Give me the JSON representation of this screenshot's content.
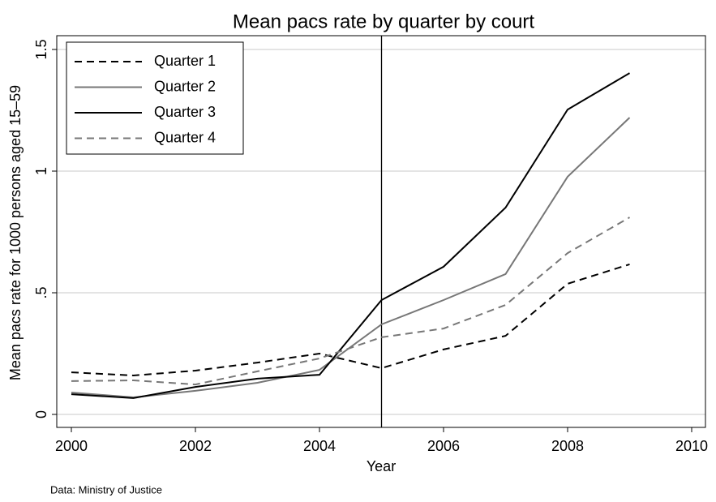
{
  "chart_data": {
    "type": "line",
    "title": "Mean pacs rate by quarter by court",
    "x_label": "Year",
    "y_label": "Mean pacs rate for 1000 persons aged 15–59",
    "note": "Data: Ministry of Justice",
    "x": [
      2000,
      2001,
      2002,
      2003,
      2004,
      2005,
      2006,
      2007,
      2008,
      2009
    ],
    "series": [
      {
        "name": "Quarter 1",
        "color": "#000000",
        "dash": "dashed",
        "values": [
          0.173,
          0.16,
          0.18,
          0.213,
          0.25,
          0.19,
          0.267,
          0.323,
          0.537,
          0.617
        ]
      },
      {
        "name": "Quarter 2",
        "color": "#777777",
        "dash": "solid",
        "values": [
          0.09,
          0.07,
          0.097,
          0.13,
          0.183,
          0.37,
          0.47,
          0.577,
          0.977,
          1.22
        ]
      },
      {
        "name": "Quarter 3",
        "color": "#000000",
        "dash": "solid",
        "values": [
          0.083,
          0.067,
          0.113,
          0.147,
          0.163,
          0.47,
          0.607,
          0.85,
          1.253,
          1.403
        ]
      },
      {
        "name": "Quarter 4",
        "color": "#777777",
        "dash": "dashed",
        "values": [
          0.137,
          0.14,
          0.123,
          0.177,
          0.23,
          0.317,
          0.353,
          0.45,
          0.663,
          0.81
        ]
      }
    ],
    "xlim": [
      2000,
      2010
    ],
    "xticks": [
      2000,
      2002,
      2004,
      2006,
      2008,
      2010
    ],
    "ylim": [
      0,
      1.5
    ],
    "yticks": [
      0,
      {
        "value": 0.5,
        "label": ".5"
      },
      1,
      1.5
    ],
    "vline": 2005,
    "grid": true,
    "legend": "top-left"
  }
}
